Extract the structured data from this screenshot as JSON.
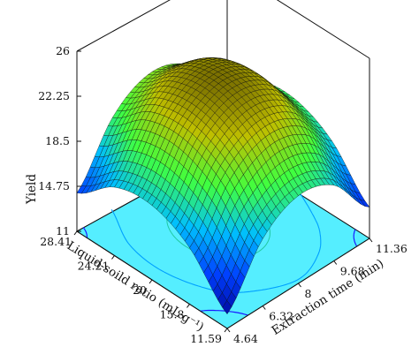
{
  "chart_data": {
    "type": "surface3d",
    "title": "",
    "zlabel": "Yield",
    "xlabel": "Extraction time (min)",
    "ylabel": "Liquid-soild ratio (mL·g⁻¹)",
    "x_ticks": [
      "4.64",
      "6.32",
      "8",
      "9.68",
      "11.36"
    ],
    "y_ticks": [
      "11.59",
      "15.8",
      "20",
      "24.21",
      "28.41"
    ],
    "z_ticks": [
      "11",
      "14.75",
      "18.5",
      "22.25",
      "26"
    ],
    "xlim": [
      4.64,
      11.36
    ],
    "ylim": [
      11.59,
      28.41
    ],
    "zlim": [
      11,
      26
    ],
    "surface_grid": {
      "x": [
        4.64,
        6.32,
        8,
        9.68,
        11.36
      ],
      "y": [
        11.59,
        15.8,
        20,
        24.21,
        28.41
      ],
      "z": [
        [
          12.2,
          16.6,
          18.3,
          17.3,
          13.6
        ],
        [
          15.7,
          20.1,
          21.8,
          20.8,
          17.1
        ],
        [
          17.2,
          21.6,
          23.3,
          22.3,
          18.6
        ],
        [
          16.7,
          21.1,
          22.8,
          21.8,
          18.1
        ],
        [
          14.2,
          18.6,
          20.3,
          19.3,
          15.6
        ]
      ]
    },
    "colormap": [
      "#00008f",
      "#0040ff",
      "#00bfff",
      "#40ff40",
      "#bfbf00",
      "#5a4a00"
    ],
    "floor_color": "#55eeff",
    "contours_on_floor": true,
    "grid": false
  }
}
